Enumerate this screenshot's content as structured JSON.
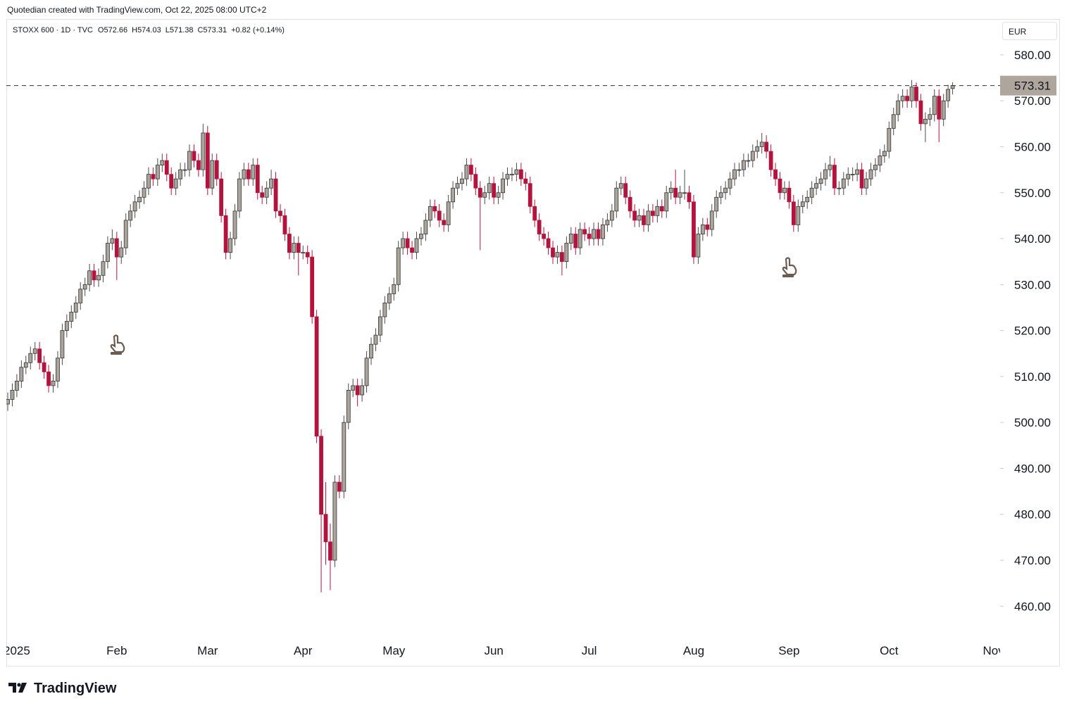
{
  "header": "Quotedian created with TradingView.com, Oct 22, 2025 08:00 UTC+2",
  "footer_brand": "TradingView",
  "chart_data": {
    "type": "candlestick",
    "symbol": "STOXX 600 · 1D · TVC",
    "ohlc_labels": [
      "O572.66",
      "H574.03",
      "L571.38",
      "C573.31",
      "+0.82 (+0.14%)"
    ],
    "currency": "EUR",
    "last_price": {
      "value": 573.31,
      "label": "573.31"
    },
    "up_color": "#aca59d",
    "down_color": "#b2143e",
    "ylim": [
      453.3,
      587.8
    ],
    "yticks": [
      {
        "value": 460,
        "label": "460.00"
      },
      {
        "value": 470,
        "label": "470.00"
      },
      {
        "value": 480,
        "label": "480.00"
      },
      {
        "value": 490,
        "label": "490.00"
      },
      {
        "value": 500,
        "label": "500.00"
      },
      {
        "value": 510,
        "label": "510.00"
      },
      {
        "value": 520,
        "label": "520.00"
      },
      {
        "value": 530,
        "label": "530.00"
      },
      {
        "value": 540,
        "label": "540.00"
      },
      {
        "value": 550,
        "label": "550.00"
      },
      {
        "value": 560,
        "label": "560.00"
      },
      {
        "value": 570,
        "label": "570.00"
      },
      {
        "value": 580,
        "label": "580.00"
      }
    ],
    "categories": [
      null,
      null,
      "2025",
      null,
      null,
      null,
      null,
      null,
      null,
      null,
      null,
      null,
      null,
      null,
      null,
      null,
      null,
      null,
      null,
      null,
      null,
      null,
      null,
      null,
      "Feb",
      null,
      null,
      null,
      null,
      null,
      null,
      null,
      null,
      null,
      null,
      null,
      null,
      null,
      null,
      null,
      null,
      null,
      null,
      null,
      "Mar",
      null,
      null,
      null,
      null,
      null,
      null,
      null,
      null,
      null,
      null,
      null,
      null,
      null,
      null,
      null,
      null,
      null,
      null,
      null,
      null,
      "Apr",
      null,
      null,
      null,
      null,
      null,
      null,
      null,
      null,
      null,
      null,
      null,
      null,
      null,
      null,
      null,
      null,
      null,
      null,
      null,
      "May",
      null,
      null,
      null,
      null,
      null,
      null,
      null,
      null,
      null,
      null,
      null,
      null,
      null,
      null,
      null,
      null,
      null,
      null,
      null,
      null,
      null,
      "Jun",
      null,
      null,
      null,
      null,
      null,
      null,
      null,
      null,
      null,
      null,
      null,
      null,
      null,
      null,
      null,
      null,
      null,
      null,
      null,
      null,
      "Jul",
      null,
      null,
      null,
      null,
      null,
      null,
      null,
      null,
      null,
      null,
      null,
      null,
      null,
      null,
      null,
      null,
      null,
      null,
      null,
      null,
      null,
      null,
      "Aug",
      null,
      null,
      null,
      null,
      null,
      null,
      null,
      null,
      null,
      null,
      null,
      null,
      null,
      null,
      null,
      null,
      null,
      null,
      null,
      null,
      "Sep",
      null,
      null,
      null,
      null,
      null,
      null,
      null,
      null,
      null,
      null,
      null,
      null,
      null,
      null,
      null,
      null,
      null,
      null,
      null,
      null,
      null,
      "Oct",
      null,
      null,
      null,
      null,
      null,
      null,
      null,
      null,
      null,
      null,
      null,
      null,
      null,
      null,
      null,
      null,
      null,
      null,
      null,
      null,
      null,
      null,
      "Nov",
      null
    ],
    "open": [
      504,
      505,
      507,
      509,
      512,
      513,
      515,
      516,
      513,
      511,
      508,
      509,
      514,
      520,
      522,
      524,
      526,
      529,
      530,
      533,
      531,
      532,
      535,
      539,
      540,
      536,
      538,
      544,
      546,
      548,
      549,
      551,
      554,
      553,
      556,
      557,
      554,
      551,
      553,
      555,
      555,
      559,
      557,
      555,
      563,
      551,
      557,
      553,
      545,
      537,
      540,
      546,
      553,
      555,
      553,
      556,
      550,
      549,
      551,
      553,
      546,
      545,
      541,
      537,
      539,
      537,
      537,
      536,
      523,
      497,
      480,
      474,
      470,
      487,
      485,
      500,
      507,
      508,
      506,
      508,
      514,
      517,
      519,
      523,
      526,
      528,
      530,
      538,
      540,
      538,
      537,
      540,
      541,
      544,
      547,
      546,
      544,
      543,
      548,
      551,
      552,
      553,
      556,
      554,
      551,
      549,
      550,
      552,
      549,
      550,
      553,
      554,
      554,
      555,
      553,
      552,
      547,
      544,
      541,
      540,
      538,
      536,
      537,
      535,
      539,
      541,
      538,
      542,
      541,
      540,
      542,
      540,
      543,
      544,
      546,
      551,
      552,
      549,
      546,
      544,
      545,
      543,
      546,
      545,
      547,
      546,
      550,
      551,
      549,
      550,
      550,
      548,
      536,
      541,
      543,
      542,
      546,
      549,
      550,
      551,
      553,
      555,
      555,
      557,
      557,
      559,
      560,
      561,
      559,
      555,
      553,
      550,
      551,
      548,
      543,
      547,
      548,
      549,
      551,
      552,
      553,
      555,
      556,
      551,
      551,
      553,
      554,
      554,
      555,
      551,
      553,
      555,
      556,
      558,
      559,
      564,
      567,
      570,
      571,
      570,
      573,
      570,
      565,
      566,
      567,
      571,
      566,
      570,
      572.66,
      null,
      null,
      null,
      null,
      null,
      null,
      null,
      null,
      null,
      null
    ],
    "high": [
      506.5,
      508.5,
      510.5,
      513.5,
      514.5,
      516.5,
      517.5,
      517.5,
      514.5,
      512.5,
      510.5,
      515.5,
      521.5,
      523.5,
      525.5,
      527.5,
      530.5,
      531.5,
      534.5,
      534.5,
      533.5,
      536.5,
      540.5,
      542,
      541.5,
      539.5,
      545.5,
      547.5,
      549.5,
      550.5,
      552.5,
      555.5,
      555.5,
      557.5,
      558.5,
      558.5,
      555.5,
      554.5,
      556.5,
      556.5,
      560.5,
      560.5,
      558.5,
      565,
      564.5,
      558.5,
      558.5,
      554.5,
      546.5,
      541.5,
      547.5,
      554.5,
      556.5,
      556.5,
      557.5,
      557.5,
      551.5,
      552.5,
      555,
      554.5,
      547.5,
      546.5,
      542.5,
      540.5,
      540.5,
      538.5,
      538.5,
      537.5,
      524.5,
      498.5,
      487,
      478,
      488.5,
      488.5,
      501.5,
      508.5,
      509.5,
      509.5,
      509.5,
      515.5,
      518.5,
      520.5,
      524.5,
      527.5,
      529.5,
      531.5,
      539.5,
      541.5,
      541.5,
      539.5,
      541.5,
      542.5,
      545.5,
      548.5,
      548.5,
      547.5,
      545.5,
      549.5,
      552.5,
      553.5,
      554.5,
      557.5,
      557.5,
      555.5,
      552.5,
      551.5,
      553.5,
      553.5,
      551.5,
      554.5,
      555.5,
      555.5,
      556.5,
      556.5,
      554.5,
      553.5,
      548.5,
      545.5,
      542.5,
      541.5,
      539.5,
      538.5,
      538.5,
      540.5,
      542.5,
      542.5,
      543.5,
      543.5,
      542.5,
      543.5,
      543.5,
      544.5,
      545.5,
      547.5,
      552.5,
      553.5,
      553.5,
      550.5,
      547.5,
      546.5,
      546.5,
      547.5,
      547.5,
      548.5,
      548.5,
      551.5,
      552.5,
      555,
      551.5,
      555,
      551.5,
      549.5,
      542.5,
      544.5,
      544.5,
      547.5,
      550.5,
      551.5,
      552.5,
      554.5,
      556.5,
      556.5,
      558.5,
      558.5,
      560.5,
      561.5,
      563,
      562.5,
      560.5,
      556.5,
      554.5,
      552.5,
      552.5,
      549.5,
      548.5,
      549.5,
      550.5,
      552.5,
      553.5,
      554.5,
      556.5,
      558,
      557.5,
      552.5,
      554.5,
      555.5,
      555.5,
      556.5,
      556.5,
      554.5,
      556.5,
      557.5,
      559.5,
      560.5,
      565.5,
      568.5,
      571.5,
      572.5,
      572.5,
      574.5,
      574,
      571.5,
      567.5,
      568.5,
      572.5,
      572.5,
      571.5,
      573.5,
      574.03,
      null,
      null,
      null,
      null,
      null,
      null,
      null,
      null,
      null,
      null
    ],
    "low": [
      502.5,
      503.5,
      505.5,
      507.5,
      510.5,
      511.5,
      513.5,
      511.5,
      509.5,
      506.5,
      506.5,
      507.5,
      512.5,
      518.5,
      520.5,
      522.5,
      524.5,
      527.5,
      528.5,
      529.5,
      529.5,
      530.5,
      533.5,
      537.5,
      531,
      534.5,
      536.5,
      542.5,
      544.5,
      546.5,
      547.5,
      549.5,
      551.5,
      551.5,
      554.5,
      552.5,
      549.5,
      549.5,
      551.5,
      553.5,
      553.5,
      555.5,
      553.5,
      553.5,
      549.5,
      549.5,
      551.5,
      543.5,
      535.5,
      535.5,
      538.5,
      544.5,
      551.5,
      551.5,
      551.5,
      548.5,
      547.5,
      547.5,
      549.5,
      544.5,
      543.5,
      539.5,
      535.5,
      535.5,
      532,
      535.5,
      534.5,
      521.5,
      495.5,
      463,
      469,
      463.5,
      468.5,
      483.5,
      483.5,
      498.5,
      505.5,
      503.5,
      504.5,
      506.5,
      512.5,
      515.5,
      517.5,
      521.5,
      524.5,
      526.5,
      528.5,
      536.5,
      536.5,
      535.5,
      535.5,
      538.5,
      539.5,
      542.5,
      544.5,
      542.5,
      541.5,
      541.5,
      546.5,
      549.5,
      550.5,
      551.5,
      552.5,
      549.5,
      537.5,
      547.5,
      548.5,
      547.5,
      547.5,
      548.5,
      551.5,
      552.5,
      552.5,
      551.5,
      550.5,
      545.5,
      542.5,
      539.5,
      538.5,
      536.5,
      534.5,
      534.5,
      532,
      533.5,
      537.5,
      536.5,
      536.5,
      539.5,
      538.5,
      538.5,
      538.5,
      538.5,
      541.5,
      542.5,
      544.5,
      549.5,
      547.5,
      544.5,
      542.5,
      542.5,
      541.5,
      541.5,
      543.5,
      543.5,
      544.5,
      544.5,
      548.5,
      547.5,
      547.5,
      548.5,
      546.5,
      534.5,
      534.5,
      539.5,
      540.5,
      540.5,
      544.5,
      547.5,
      548.5,
      549.5,
      551.5,
      553.5,
      553.5,
      555.5,
      555.5,
      557.5,
      558.5,
      557.5,
      553.5,
      551.5,
      548.5,
      548.5,
      546.5,
      541.5,
      541.5,
      545.5,
      546.5,
      547.5,
      549.5,
      550.5,
      551.5,
      553.5,
      549.5,
      549.5,
      549.5,
      551.5,
      552.5,
      552.5,
      549.5,
      549.5,
      551.5,
      553.5,
      554.5,
      556.5,
      557.5,
      562.5,
      565.5,
      568.5,
      568.5,
      568.5,
      568.5,
      563.5,
      561,
      564.5,
      565.5,
      561,
      564.5,
      568.5,
      571.38,
      null,
      null,
      null,
      null,
      null,
      null,
      null,
      null,
      null,
      null
    ],
    "close": [
      505,
      507,
      509,
      512,
      513,
      515,
      516,
      513,
      511,
      508,
      509,
      514,
      520,
      522,
      524,
      526,
      529,
      530,
      533,
      531,
      532,
      535,
      539,
      540,
      536,
      538,
      544,
      546,
      548,
      549,
      551,
      554,
      553,
      556,
      557,
      554,
      551,
      553,
      555,
      555,
      559,
      557,
      555,
      563,
      551,
      557,
      553,
      545,
      537,
      540,
      546,
      553,
      555,
      553,
      556,
      550,
      549,
      551,
      553,
      546,
      545,
      541,
      537,
      539,
      537,
      537,
      536,
      523,
      497,
      480,
      474,
      470,
      487,
      485,
      500,
      507,
      508,
      506,
      508,
      514,
      517,
      519,
      523,
      526,
      528,
      530,
      538,
      540,
      538,
      537,
      540,
      541,
      544,
      547,
      546,
      544,
      543,
      548,
      551,
      552,
      553,
      556,
      554,
      551,
      549,
      550,
      552,
      549,
      550,
      553,
      554,
      554,
      555,
      553,
      552,
      547,
      544,
      541,
      540,
      538,
      536,
      537,
      535,
      539,
      541,
      538,
      542,
      541,
      540,
      542,
      540,
      543,
      544,
      546,
      551,
      552,
      549,
      546,
      544,
      545,
      543,
      546,
      545,
      547,
      546,
      550,
      551,
      549,
      550,
      550,
      548,
      536,
      541,
      543,
      542,
      546,
      549,
      550,
      551,
      553,
      555,
      555,
      557,
      557,
      559,
      560,
      561,
      559,
      555,
      553,
      550,
      551,
      548,
      543,
      547,
      548,
      549,
      551,
      552,
      553,
      555,
      556,
      551,
      551,
      553,
      554,
      554,
      555,
      551,
      553,
      555,
      556,
      558,
      559,
      564,
      567,
      570,
      571,
      570,
      573,
      570,
      565,
      566,
      567,
      571,
      566,
      570,
      572.49,
      573.31,
      null,
      null,
      null,
      null,
      null,
      null,
      null,
      null,
      null,
      null
    ]
  }
}
